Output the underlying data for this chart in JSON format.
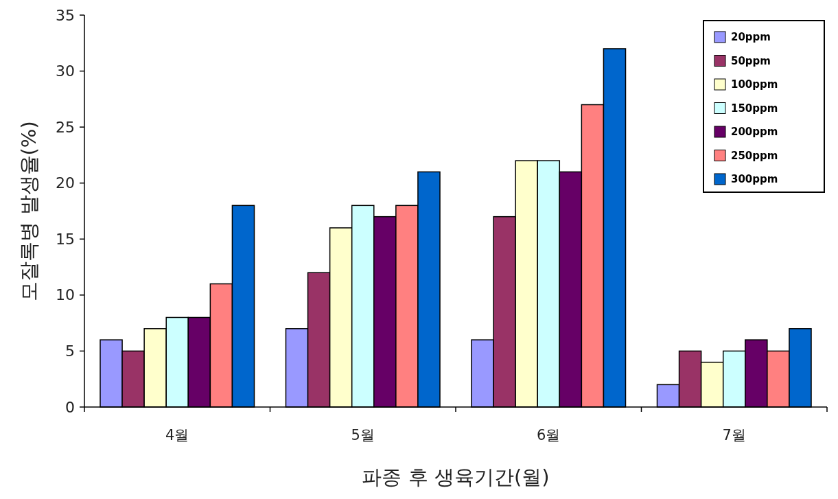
{
  "chart_data": {
    "type": "bar",
    "xlabel": "파종 후 생육기간(월)",
    "ylabel": "모잘록병 발생율(%)",
    "categories": [
      "4월",
      "5월",
      "6월",
      "7월"
    ],
    "series": [
      {
        "name": "20ppm",
        "color": "#9999ff",
        "values": [
          6,
          7,
          6,
          2
        ]
      },
      {
        "name": "50ppm",
        "color": "#993366",
        "values": [
          5,
          12,
          17,
          5
        ]
      },
      {
        "name": "100ppm",
        "color": "#ffffcc",
        "values": [
          7,
          16,
          22,
          4
        ]
      },
      {
        "name": "150ppm",
        "color": "#ccffff",
        "values": [
          8,
          18,
          22,
          5
        ]
      },
      {
        "name": "200ppm",
        "color": "#660066",
        "values": [
          8,
          17,
          21,
          6
        ]
      },
      {
        "name": "250ppm",
        "color": "#ff8080",
        "values": [
          11,
          18,
          27,
          5
        ]
      },
      {
        "name": "300ppm",
        "color": "#0066cc",
        "values": [
          18,
          21,
          32,
          7
        ]
      }
    ],
    "ylim": [
      0,
      35
    ],
    "yticks": [
      0,
      5,
      10,
      15,
      20,
      25,
      30,
      35
    ],
    "grid": false,
    "legend": "top right"
  }
}
